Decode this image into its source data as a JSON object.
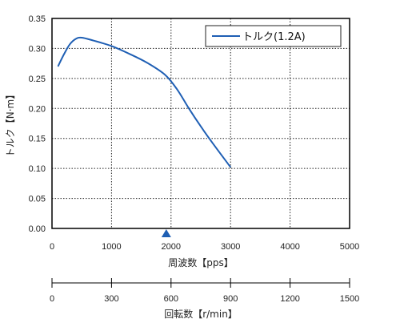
{
  "chart_data": {
    "type": "line",
    "xlabel": "周波数【pps】",
    "ylabel": "トルク【N·m】",
    "xlim": [
      0,
      5000
    ],
    "ylim": [
      0,
      0.35
    ],
    "x_ticks": [
      "0",
      "1000",
      "2000",
      "3000",
      "4000",
      "5000"
    ],
    "y_ticks": [
      "0.00",
      "0.05",
      "0.10",
      "0.15",
      "0.20",
      "0.25",
      "0.30",
      "0.35"
    ],
    "grid": true,
    "legend_position": "top-right",
    "series": [
      {
        "name": "トルク(1.2A)",
        "color": "#1f5fb4",
        "x": [
          100,
          200,
          300,
          400,
          500,
          700,
          1000,
          1300,
          1600,
          1900,
          2100,
          2300,
          2500,
          2700,
          3000
        ],
        "y": [
          0.27,
          0.29,
          0.307,
          0.316,
          0.318,
          0.313,
          0.304,
          0.291,
          0.276,
          0.256,
          0.232,
          0.2,
          0.17,
          0.142,
          0.102
        ]
      }
    ],
    "marker": {
      "x": 1920,
      "color": "#1f5fb4"
    },
    "secondary_axis": {
      "label": "回転数【r/min】",
      "lim": [
        0,
        1500
      ],
      "ticks": [
        "0",
        "300",
        "600",
        "900",
        "1200",
        "1500"
      ]
    }
  }
}
